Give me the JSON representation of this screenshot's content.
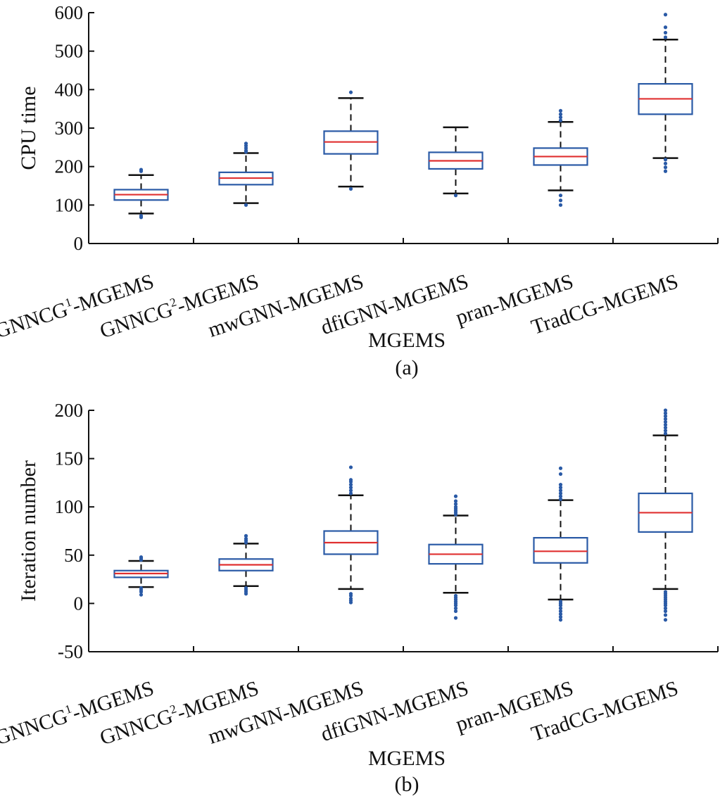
{
  "colors": {
    "box": "#2a5aa6",
    "median": "#e03030",
    "whisker": "#111111",
    "outlier": "#2a5aa6",
    "axis": "#111111"
  },
  "chart_data": [
    {
      "type": "box",
      "panel_label": "(a)",
      "xlabel": "MGEMS",
      "ylabel": "CPU time",
      "ylim": [
        0,
        600
      ],
      "yticks": [
        "0",
        "100",
        "200",
        "300",
        "400",
        "500",
        "600"
      ],
      "categories": [
        {
          "base": "GNNCG",
          "sup": "1",
          "suffix": "-MGEMS"
        },
        {
          "base": "GNNCG",
          "sup": "2",
          "suffix": "-MGEMS"
        },
        {
          "base": "mwGNN-MGEMS",
          "sup": "",
          "suffix": ""
        },
        {
          "base": "dfiGNN-MGEMS",
          "sup": "",
          "suffix": ""
        },
        {
          "base": "pran-MGEMS",
          "sup": "",
          "suffix": ""
        },
        {
          "base": "TradCG-MGEMS",
          "sup": "",
          "suffix": ""
        }
      ],
      "boxes": [
        {
          "whisker_low": 78,
          "q1": 113,
          "median": 127,
          "q3": 140,
          "whisker_high": 178,
          "outliers": [
            68,
            72,
            188,
            192
          ]
        },
        {
          "whisker_low": 105,
          "q1": 153,
          "median": 170,
          "q3": 185,
          "whisker_high": 235,
          "outliers": [
            100,
            238,
            242,
            248,
            254,
            260
          ]
        },
        {
          "whisker_low": 148,
          "q1": 233,
          "median": 264,
          "q3": 292,
          "whisker_high": 378,
          "outliers": [
            142,
            393
          ]
        },
        {
          "whisker_low": 130,
          "q1": 194,
          "median": 215,
          "q3": 237,
          "whisker_high": 302,
          "outliers": [
            125
          ]
        },
        {
          "whisker_low": 138,
          "q1": 204,
          "median": 226,
          "q3": 248,
          "whisker_high": 316,
          "outliers": [
            100,
            112,
            125,
            320,
            328,
            336,
            345
          ]
        },
        {
          "whisker_low": 222,
          "q1": 336,
          "median": 376,
          "q3": 415,
          "whisker_high": 530,
          "outliers": [
            188,
            198,
            208,
            218,
            536,
            548,
            562,
            595
          ]
        }
      ]
    },
    {
      "type": "box",
      "panel_label": "(b)",
      "xlabel": "MGEMS",
      "ylabel": "Iteration number",
      "ylim": [
        -50,
        200
      ],
      "yticks": [
        "-50",
        "0",
        "50",
        "100",
        "150",
        "200"
      ],
      "categories": [
        {
          "base": "GNNCG",
          "sup": "1",
          "suffix": "-MGEMS"
        },
        {
          "base": "GNNCG",
          "sup": "2",
          "suffix": "-MGEMS"
        },
        {
          "base": "mwGNN-MGEMS",
          "sup": "",
          "suffix": ""
        },
        {
          "base": "dfiGNN-MGEMS",
          "sup": "",
          "suffix": ""
        },
        {
          "base": "pran-MGEMS",
          "sup": "",
          "suffix": ""
        },
        {
          "base": "TradCG-MGEMS",
          "sup": "",
          "suffix": ""
        }
      ],
      "boxes": [
        {
          "whisker_low": 17,
          "q1": 27,
          "median": 31,
          "q3": 34,
          "whisker_high": 44,
          "outliers": [
            9,
            12,
            14,
            16,
            45,
            46,
            47,
            48
          ]
        },
        {
          "whisker_low": 18,
          "q1": 34,
          "median": 40,
          "q3": 46,
          "whisker_high": 62,
          "outliers": [
            10,
            12,
            14,
            16,
            63,
            65,
            67,
            70
          ]
        },
        {
          "whisker_low": 15,
          "q1": 51,
          "median": 63,
          "q3": 75,
          "whisker_high": 112,
          "outliers": [
            1,
            3,
            5,
            8,
            10,
            114,
            117,
            120,
            123,
            126,
            128,
            141
          ]
        },
        {
          "whisker_low": 11,
          "q1": 41,
          "median": 51,
          "q3": 61,
          "whisker_high": 91,
          "outliers": [
            -15,
            -8,
            -5,
            -2,
            0,
            2,
            4,
            6,
            8,
            92,
            94,
            96,
            98,
            100,
            103,
            106,
            111
          ]
        },
        {
          "whisker_low": 4,
          "q1": 42,
          "median": 54,
          "q3": 68,
          "whisker_high": 107,
          "outliers": [
            -17,
            -14,
            -11,
            -8,
            -5,
            -2,
            0,
            2,
            108,
            111,
            114,
            117,
            120,
            123,
            134,
            140
          ]
        },
        {
          "whisker_low": 15,
          "q1": 74,
          "median": 94,
          "q3": 114,
          "whisker_high": 174,
          "outliers": [
            -17,
            -12,
            -8,
            -5,
            -2,
            0,
            2,
            4,
            6,
            8,
            10,
            12,
            176,
            179,
            182,
            185,
            188,
            191,
            194,
            197,
            200
          ]
        }
      ]
    }
  ]
}
